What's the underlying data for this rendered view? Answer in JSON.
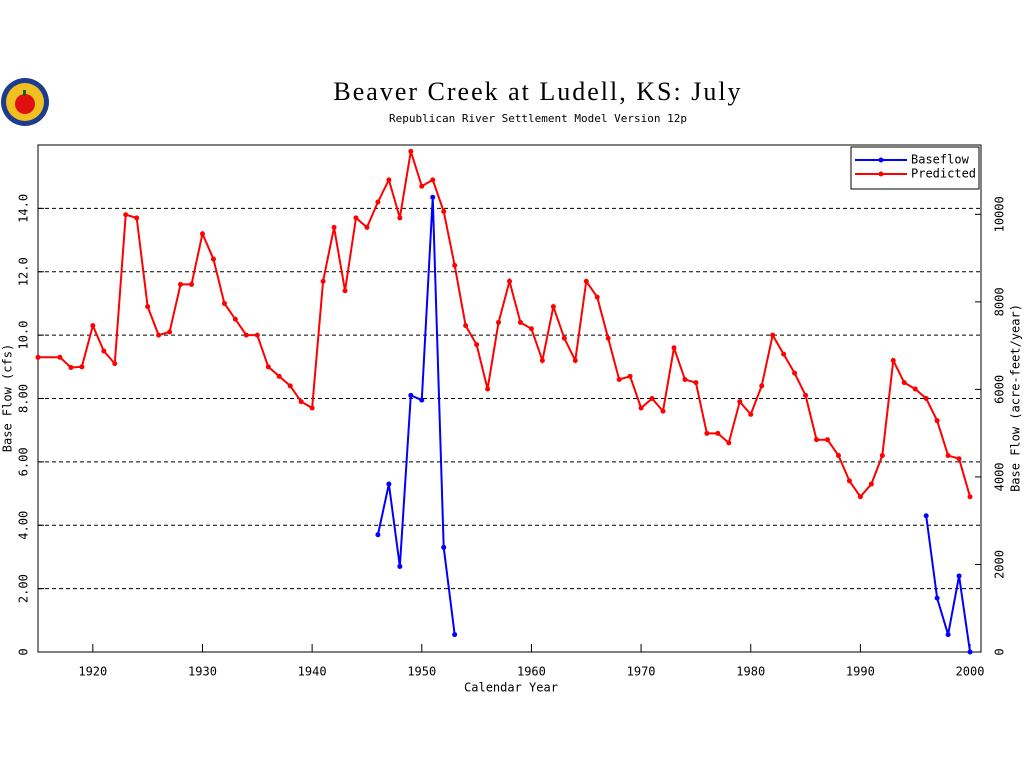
{
  "chart_data": {
    "type": "line",
    "title": "Beaver Creek at Ludell, KS: July",
    "subtitle": "Republican River Settlement Model Version 12p",
    "xlabel": "Calendar Year",
    "ylabel": "Base Flow (cfs)",
    "y2label": "Base Flow (acre-feet/year)",
    "xlim": [
      1915,
      2001
    ],
    "xticks": [
      1920,
      1930,
      1940,
      1950,
      1960,
      1970,
      1980,
      1990,
      2000
    ],
    "ylim": [
      0,
      16
    ],
    "yticks": [
      0,
      {
        "value": 2,
        "label": "2.00"
      },
      {
        "value": 4,
        "label": "4.00"
      },
      {
        "value": 6,
        "label": "6.00"
      },
      {
        "value": 8,
        "label": "8.00"
      },
      {
        "value": 10,
        "label": "10.0"
      },
      {
        "value": 12,
        "label": "12.0"
      },
      {
        "value": 14,
        "label": "14.0"
      }
    ],
    "y2lim": [
      0,
      11584
    ],
    "y2ticks": [
      0,
      2000,
      4000,
      6000,
      8000,
      10000
    ],
    "grid": true,
    "legend": "upper right",
    "series": [
      {
        "name": "Baseflow",
        "color": "#0000ff",
        "x": [
          1946,
          1947,
          1948,
          1949,
          1950,
          1951,
          1952,
          1953,
          1954,
          1996,
          1997,
          1998,
          1999,
          2000
        ],
        "values": [
          3.7,
          5.3,
          2.7,
          8.1,
          7.95,
          14.35,
          3.3,
          0.55,
          null,
          4.3,
          1.7,
          0.55,
          2.4,
          0
        ]
      },
      {
        "name": "Predicted",
        "color": "#ff0000",
        "x": [
          1915,
          1917,
          1918,
          1919,
          1920,
          1921,
          1922,
          1923,
          1924,
          1925,
          1926,
          1927,
          1928,
          1929,
          1930,
          1931,
          1932,
          1933,
          1934,
          1935,
          1936,
          1937,
          1938,
          1939,
          1940,
          1941,
          1942,
          1943,
          1944,
          1945,
          1946,
          1947,
          1948,
          1949,
          1950,
          1951,
          1952,
          1953,
          1954,
          1955,
          1956,
          1957,
          1958,
          1959,
          1960,
          1961,
          1962,
          1963,
          1964,
          1965,
          1966,
          1967,
          1968,
          1969,
          1970,
          1971,
          1972,
          1973,
          1974,
          1975,
          1976,
          1977,
          1978,
          1979,
          1980,
          1981,
          1982,
          1983,
          1984,
          1985,
          1986,
          1987,
          1988,
          1989,
          1990,
          1991,
          1992,
          1993,
          1994,
          1995,
          1996,
          1997,
          1998,
          1999,
          2000
        ],
        "values": [
          9.3,
          9.3,
          8.98,
          9.0,
          10.3,
          9.5,
          9.1,
          13.8,
          13.7,
          10.9,
          10.0,
          10.1,
          11.6,
          11.6,
          13.2,
          12.4,
          11.0,
          10.5,
          10.0,
          10.0,
          9.0,
          8.7,
          8.4,
          7.9,
          7.7,
          11.7,
          13.4,
          11.4,
          13.7,
          13.4,
          14.2,
          14.9,
          13.7,
          15.8,
          14.7,
          14.9,
          13.9,
          12.2,
          10.3,
          9.7,
          8.3,
          10.4,
          11.7,
          10.4,
          10.2,
          9.2,
          10.9,
          9.9,
          9.2,
          11.7,
          11.2,
          9.9,
          8.6,
          8.7,
          7.7,
          8.0,
          7.6,
          9.6,
          8.6,
          8.5,
          6.9,
          6.9,
          6.6,
          7.9,
          7.5,
          8.4,
          10.0,
          9.4,
          8.8,
          8.1,
          6.7,
          6.7,
          6.2,
          5.4,
          4.9,
          5.3,
          6.2,
          9.2,
          8.5,
          8.3,
          8.0,
          7.3,
          6.2,
          6.1,
          4.9
        ]
      }
    ]
  }
}
